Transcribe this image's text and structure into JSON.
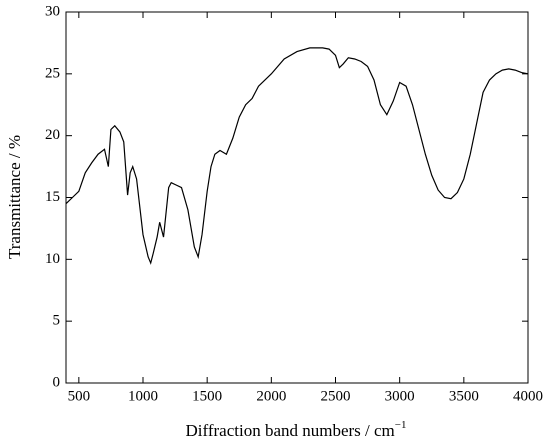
{
  "chart_data": {
    "type": "line",
    "x_label": "Diffraction band numbers / cm",
    "x_label_superscript": "−1",
    "y_label": "Transmittance / %",
    "xlim": [
      400,
      4000
    ],
    "ylim": [
      0,
      30
    ],
    "xticks": [
      500,
      1000,
      1500,
      2000,
      2500,
      3000,
      3500,
      4000
    ],
    "yticks": [
      0,
      5,
      10,
      15,
      20,
      25,
      30
    ],
    "x": [
      400,
      450,
      500,
      550,
      600,
      650,
      700,
      730,
      750,
      780,
      820,
      850,
      880,
      900,
      920,
      950,
      1000,
      1040,
      1060,
      1080,
      1110,
      1130,
      1160,
      1200,
      1220,
      1260,
      1300,
      1350,
      1400,
      1430,
      1460,
      1500,
      1530,
      1560,
      1600,
      1650,
      1700,
      1750,
      1800,
      1850,
      1900,
      2000,
      2100,
      2200,
      2300,
      2400,
      2450,
      2500,
      2530,
      2560,
      2600,
      2650,
      2700,
      2750,
      2800,
      2850,
      2900,
      2950,
      3000,
      3050,
      3100,
      3150,
      3200,
      3250,
      3300,
      3350,
      3400,
      3450,
      3500,
      3550,
      3600,
      3650,
      3700,
      3750,
      3800,
      3850,
      3900,
      3950,
      4000
    ],
    "series": [
      {
        "color": "#000000",
        "values": [
          14.5,
          15,
          15.5,
          17,
          17.8,
          18.5,
          18.9,
          17.5,
          20.5,
          20.8,
          20.3,
          19.5,
          15.2,
          17,
          17.5,
          16.5,
          12,
          10.2,
          9.7,
          10.5,
          11.8,
          13,
          11.8,
          15.8,
          16.2,
          16,
          15.8,
          14,
          11,
          10.2,
          12,
          15.5,
          17.5,
          18.5,
          18.8,
          18.5,
          19.8,
          21.5,
          22.5,
          23,
          24,
          25,
          26.2,
          26.8,
          27.1,
          27.1,
          27,
          26.5,
          25.5,
          25.8,
          26.3,
          26.2,
          26,
          25.6,
          24.5,
          22.5,
          21.7,
          22.8,
          24.3,
          24,
          22.5,
          20.5,
          18.5,
          16.8,
          15.6,
          15,
          14.9,
          15.4,
          16.5,
          18.5,
          21,
          23.5,
          24.5,
          25,
          25.3,
          25.4,
          25.3,
          25.1,
          25
        ]
      }
    ]
  }
}
